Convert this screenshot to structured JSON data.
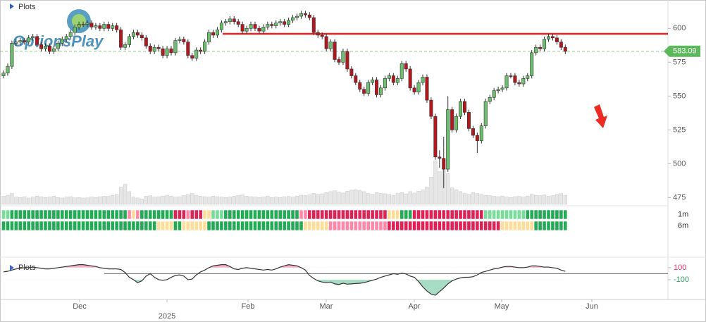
{
  "chart_data": {
    "type": "candlestick",
    "legend": "Plots",
    "logo": "OptionsPlay",
    "up_color": "#6cbf6c",
    "down_color": "#b3161c",
    "ylim": [
      470,
      621
    ],
    "yticks": [
      475,
      500,
      525,
      550,
      575,
      600
    ],
    "last_price_color": "#5cb85c",
    "resistance": {
      "value": 596,
      "color": "#e8221f"
    },
    "open": [
      565,
      567,
      572,
      589,
      590,
      591,
      590,
      593,
      594,
      588,
      585,
      587,
      583,
      585,
      589,
      592,
      594,
      597,
      601,
      603,
      603,
      604,
      601,
      602,
      600,
      603,
      600,
      602,
      599,
      586,
      588,
      594,
      597,
      595,
      593,
      587,
      583,
      586,
      585,
      580,
      585,
      582,
      591,
      592,
      590,
      580,
      578,
      584,
      583,
      590,
      597,
      595,
      599,
      604,
      605,
      607,
      605,
      603,
      598,
      600,
      603,
      600,
      598,
      601,
      603,
      602,
      604,
      605,
      603,
      606,
      608,
      609,
      611,
      610,
      608,
      597,
      595,
      594,
      585,
      590,
      577,
      575,
      583,
      570,
      565,
      560,
      555,
      552,
      560,
      562,
      551,
      556,
      563,
      565,
      560,
      563,
      574,
      570,
      556,
      553,
      560,
      564,
      547,
      535,
      505,
      504,
      496,
      540,
      525,
      535,
      546,
      538,
      526,
      521,
      517,
      528,
      546,
      549,
      554,
      555,
      556,
      565,
      565,
      560,
      559,
      563,
      565,
      582,
      586,
      585,
      592,
      594,
      593,
      590,
      586
    ],
    "high": [
      569,
      574,
      591,
      592,
      593,
      593,
      595,
      596,
      596,
      590,
      589,
      589,
      587,
      591,
      594,
      596,
      599,
      603,
      605,
      605,
      606,
      606,
      604,
      604,
      605,
      605,
      604,
      604,
      601,
      590,
      596,
      599,
      599,
      597,
      595,
      589,
      588,
      588,
      587,
      587,
      587,
      593,
      594,
      594,
      592,
      582,
      586,
      586,
      592,
      599,
      599,
      601,
      606,
      607,
      609,
      609,
      607,
      605,
      602,
      605,
      605,
      602,
      603,
      605,
      605,
      606,
      607,
      607,
      608,
      610,
      611,
      613,
      613,
      612,
      610,
      599,
      597,
      596,
      592,
      592,
      579,
      585,
      585,
      572,
      567,
      562,
      557,
      562,
      564,
      564,
      558,
      565,
      567,
      567,
      565,
      576,
      576,
      572,
      558,
      562,
      566,
      566,
      549,
      537,
      510,
      520,
      550,
      542,
      537,
      548,
      548,
      540,
      528,
      523,
      530,
      548,
      551,
      556,
      557,
      558,
      567,
      567,
      567,
      562,
      565,
      567,
      584,
      588,
      588,
      594,
      596,
      596,
      595,
      592,
      588
    ],
    "low": [
      563,
      565,
      570,
      587,
      588,
      588,
      588,
      591,
      586,
      583,
      583,
      581,
      581,
      583,
      587,
      590,
      592,
      595,
      599,
      601,
      601,
      599,
      599,
      598,
      598,
      598,
      598,
      597,
      584,
      584,
      586,
      592,
      593,
      591,
      585,
      581,
      581,
      583,
      578,
      578,
      580,
      580,
      589,
      588,
      578,
      576,
      576,
      581,
      581,
      588,
      593,
      593,
      597,
      602,
      603,
      603,
      601,
      596,
      596,
      598,
      598,
      596,
      596,
      599,
      600,
      600,
      602,
      601,
      601,
      604,
      606,
      607,
      608,
      606,
      595,
      593,
      592,
      583,
      583,
      575,
      573,
      573,
      568,
      563,
      558,
      553,
      550,
      550,
      558,
      549,
      549,
      554,
      561,
      558,
      558,
      561,
      568,
      554,
      551,
      551,
      558,
      545,
      533,
      503,
      497,
      482,
      494,
      523,
      523,
      533,
      536,
      524,
      519,
      508,
      515,
      526,
      544,
      547,
      552,
      553,
      554,
      563,
      558,
      557,
      557,
      561,
      563,
      580,
      583,
      583,
      590,
      591,
      588,
      584,
      581
    ],
    "close": [
      567,
      572,
      589,
      590,
      591,
      590,
      593,
      594,
      588,
      585,
      587,
      583,
      585,
      589,
      592,
      594,
      597,
      601,
      603,
      603,
      604,
      601,
      602,
      600,
      603,
      600,
      602,
      599,
      586,
      588,
      594,
      597,
      595,
      593,
      587,
      583,
      586,
      585,
      580,
      585,
      582,
      591,
      592,
      590,
      580,
      578,
      584,
      583,
      590,
      597,
      595,
      599,
      604,
      605,
      607,
      605,
      603,
      598,
      600,
      603,
      600,
      598,
      601,
      603,
      602,
      604,
      605,
      603,
      606,
      608,
      609,
      611,
      610,
      608,
      597,
      595,
      594,
      585,
      590,
      577,
      575,
      583,
      570,
      565,
      560,
      555,
      552,
      560,
      562,
      551,
      556,
      563,
      565,
      560,
      563,
      574,
      570,
      556,
      553,
      560,
      564,
      547,
      535,
      505,
      504,
      496,
      540,
      525,
      535,
      546,
      538,
      526,
      521,
      517,
      528,
      546,
      549,
      554,
      555,
      556,
      565,
      565,
      560,
      559,
      563,
      565,
      582,
      586,
      585,
      592,
      594,
      593,
      590,
      586,
      583.09
    ],
    "volume": {
      "color": "#e6e6e6",
      "values": [
        45,
        50,
        60,
        40,
        38,
        42,
        35,
        40,
        45,
        42,
        38,
        40,
        45,
        38,
        35,
        40,
        42,
        36,
        38,
        35,
        36,
        40,
        38,
        42,
        45,
        44,
        50,
        55,
        95,
        110,
        70,
        40,
        35,
        30,
        45,
        48,
        40,
        42,
        46,
        50,
        45,
        40,
        42,
        48,
        55,
        60,
        50,
        45,
        42,
        40,
        45,
        42,
        40,
        38,
        40,
        45,
        50,
        52,
        45,
        42,
        40,
        38,
        40,
        45,
        38,
        40,
        38,
        42,
        44,
        40,
        46,
        50,
        48,
        52,
        60,
        55,
        58,
        65,
        70,
        75,
        68,
        62,
        72,
        78,
        80,
        75,
        70,
        60,
        55,
        65,
        60,
        58,
        55,
        50,
        60,
        65,
        58,
        70,
        62,
        72,
        80,
        95,
        150,
        240,
        180,
        200,
        170,
        90,
        80,
        70,
        60,
        55,
        65,
        60,
        55,
        50,
        48,
        45,
        42,
        45,
        40,
        38,
        42,
        44,
        40,
        45,
        55,
        50,
        48,
        52,
        45,
        48,
        55,
        60,
        50
      ]
    },
    "strips": [
      {
        "name": "1m",
        "colors": [
          "#7d9",
          "#7d9",
          "#2a5",
          "#2a5",
          "#2a5",
          "#2a5",
          "#2a5",
          "#2a5",
          "#2a5",
          "#2a5",
          "#2a5",
          "#2a5",
          "#2a5",
          "#2a5",
          "#2a5",
          "#2a5",
          "#2a5",
          "#2a5",
          "#2a5",
          "#2a5",
          "#2a5",
          "#2a5",
          "#2a5",
          "#2a5",
          "#2a5",
          "#2a5",
          "#2a5",
          "#2a5",
          "#2a5",
          "#2a5",
          "#f8a",
          "#fd9",
          "#f8a",
          "#2a5",
          "#2a5",
          "#2a5",
          "#2a5",
          "#2a5",
          "#2a5",
          "#2a5",
          "#2a5",
          "#d25",
          "#d25",
          "#d25",
          "#f8a",
          "#d25",
          "#d25",
          "#d25",
          "#fd9",
          "#fd9",
          "#7d9",
          "#7d9",
          "#7d9",
          "#2a5",
          "#2a5",
          "#2a5",
          "#2a5",
          "#2a5",
          "#2a5",
          "#2a5",
          "#2a5",
          "#2a5",
          "#2a5",
          "#2a5",
          "#2a5",
          "#2a5",
          "#2a5",
          "#2a5",
          "#2a5",
          "#2a5",
          "#2a5",
          "#f8a",
          "#f8a",
          "#d25",
          "#d25",
          "#d25",
          "#d25",
          "#d25",
          "#d25",
          "#d25",
          "#d25",
          "#d25",
          "#d25",
          "#d25",
          "#d25",
          "#d25",
          "#d25",
          "#d25",
          "#d25",
          "#d25",
          "#d25",
          "#d25",
          "#fd9",
          "#fd9",
          "#fd9",
          "#2a5",
          "#2a5",
          "#2a5",
          "#d25",
          "#d25",
          "#d25",
          "#d25",
          "#d25",
          "#d25",
          "#d25",
          "#d25",
          "#d25",
          "#d25",
          "#d25",
          "#d25",
          "#d25",
          "#d25",
          "#d25",
          "#d25",
          "#d25",
          "#7d9",
          "#7d9",
          "#7d9",
          "#7d9",
          "#7d9",
          "#7d9",
          "#7d9",
          "#7d9",
          "#7d9",
          "#7d9",
          "#2a5",
          "#2a5",
          "#2a5",
          "#2a5",
          "#2a5",
          "#2a5",
          "#2a5",
          "#2a5",
          "#2a5",
          "#2a5"
        ]
      },
      {
        "name": "6m",
        "colors": [
          "#2a5",
          "#2a5",
          "#2a5",
          "#2a5",
          "#2a5",
          "#2a5",
          "#2a5",
          "#2a5",
          "#2a5",
          "#2a5",
          "#2a5",
          "#2a5",
          "#2a5",
          "#2a5",
          "#2a5",
          "#2a5",
          "#2a5",
          "#2a5",
          "#2a5",
          "#2a5",
          "#2a5",
          "#2a5",
          "#2a5",
          "#2a5",
          "#2a5",
          "#2a5",
          "#2a5",
          "#2a5",
          "#2a5",
          "#2a5",
          "#2a5",
          "#2a5",
          "#2a5",
          "#2a5",
          "#2a5",
          "#2a5",
          "#2a5",
          "#fd9",
          "#fd9",
          "#fd9",
          "#fd9",
          "#2a5",
          "#2a5",
          "#fd9",
          "#fd9",
          "#fd9",
          "#fd9",
          "#fd9",
          "#fd9",
          "#2a5",
          "#2a5",
          "#2a5",
          "#2a5",
          "#2a5",
          "#2a5",
          "#2a5",
          "#2a5",
          "#2a5",
          "#2a5",
          "#2a5",
          "#2a5",
          "#2a5",
          "#2a5",
          "#2a5",
          "#2a5",
          "#2a5",
          "#2a5",
          "#2a5",
          "#2a5",
          "#2a5",
          "#2a5",
          "#2a5",
          "#fd9",
          "#fd9",
          "#fd9",
          "#fd9",
          "#fd9",
          "#fd9",
          "#f8a",
          "#f8a",
          "#f8a",
          "#f8a",
          "#f8a",
          "#f8a",
          "#f8a",
          "#f8a",
          "#f8a",
          "#f8a",
          "#f8a",
          "#f8a",
          "#f8a",
          "#f8a",
          "#d25",
          "#d25",
          "#d25",
          "#d25",
          "#d25",
          "#d25",
          "#d25",
          "#d25",
          "#d25",
          "#d25",
          "#d25",
          "#d25",
          "#d25",
          "#d25",
          "#d25",
          "#d25",
          "#d25",
          "#d25",
          "#d25",
          "#d25",
          "#d25",
          "#d25",
          "#d25",
          "#d25",
          "#d25",
          "#d25",
          "#d25",
          "#fd9",
          "#fd9",
          "#fd9",
          "#fd9",
          "#fd9",
          "#fd9",
          "#fd9",
          "#fd9",
          "#2a5",
          "#2a5",
          "#2a5",
          "#2a5",
          "#2a5",
          "#2a5",
          "#2a5",
          "#2a5"
        ]
      }
    ],
    "oscillator": {
      "legend": "Plots",
      "color": "#333333",
      "upper_color": "#f6b3c6",
      "lower_color": "#a8dcc4",
      "ylim": [
        -430,
        240
      ],
      "yticks": [
        100,
        -100
      ],
      "tick_colors": [
        "#e5306a",
        "#2e9d5b"
      ],
      "values": [
        30,
        40,
        60,
        80,
        90,
        100,
        100,
        110,
        100,
        90,
        80,
        80,
        90,
        100,
        110,
        120,
        130,
        140,
        150,
        150,
        140,
        130,
        120,
        100,
        90,
        80,
        80,
        80,
        70,
        20,
        -60,
        -100,
        -150,
        -120,
        -40,
        0,
        -60,
        -100,
        -110,
        -100,
        -60,
        -30,
        -20,
        -40,
        -100,
        -90,
        -20,
        30,
        60,
        100,
        130,
        140,
        150,
        150,
        120,
        80,
        70,
        90,
        100,
        90,
        80,
        70,
        60,
        70,
        60,
        80,
        110,
        130,
        150,
        140,
        130,
        100,
        60,
        -30,
        -80,
        -120,
        -140,
        -150,
        -140,
        -170,
        -180,
        -160,
        -175,
        -170,
        -165,
        -160,
        -150,
        -130,
        -110,
        -90,
        -60,
        -40,
        -20,
        0,
        -10,
        10,
        -5,
        -40,
        -60,
        -130,
        -220,
        -290,
        -340,
        -360,
        -300,
        -240,
        -170,
        -120,
        -90,
        -70,
        -60,
        -60,
        -50,
        -20,
        20,
        40,
        60,
        80,
        90,
        110,
        120,
        120,
        110,
        100,
        100,
        110,
        130,
        130,
        120,
        110,
        110,
        100,
        90,
        60,
        40
      ]
    },
    "x_labels": [
      "Dec",
      "2025",
      "Feb",
      "Mar",
      "Apr",
      "May",
      "Jun"
    ]
  }
}
